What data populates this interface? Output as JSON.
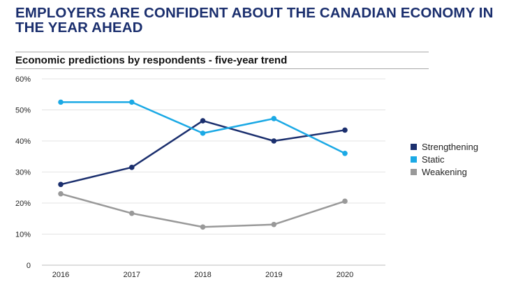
{
  "header": {
    "title": "EMPLOYERS ARE CONFIDENT ABOUT THE CANADIAN ECONOMY IN THE YEAR AHEAD",
    "subtitle": "Economic predictions by respondents - five-year trend"
  },
  "chart_data": {
    "type": "line",
    "title": "EMPLOYERS ARE CONFIDENT ABOUT THE CANADIAN ECONOMY IN THE YEAR AHEAD",
    "subtitle": "Economic predictions by respondents - five-year trend",
    "xlabel": "",
    "ylabel": "",
    "categories": [
      "2016",
      "2017",
      "2018",
      "2019",
      "2020"
    ],
    "ylim": [
      0,
      60
    ],
    "yticks": [
      0,
      10,
      20,
      30,
      40,
      50,
      60
    ],
    "ytick_labels": [
      "0",
      "10%",
      "20%",
      "30%",
      "40%",
      "50%",
      "60%"
    ],
    "grid": "horizontal",
    "legend_position": "right",
    "series": [
      {
        "name": "Strengthening",
        "color": "#1b2f6e",
        "values": [
          26,
          31.5,
          46.5,
          40,
          43.5
        ]
      },
      {
        "name": "Static",
        "color": "#1ba9e5",
        "values": [
          52.5,
          52.5,
          42.5,
          47.2,
          36
        ]
      },
      {
        "name": "Weakening",
        "color": "#999999",
        "values": [
          23,
          16.7,
          12.3,
          13.1,
          20.6
        ]
      }
    ]
  }
}
